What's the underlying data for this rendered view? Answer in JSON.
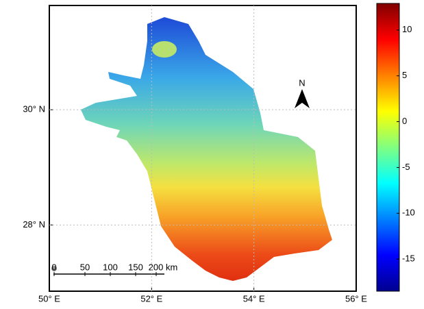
{
  "chart_data": {
    "type": "map",
    "xlim": [
      50,
      56
    ],
    "xticks": [
      {
        "value": 50,
        "label": "50° E"
      },
      {
        "value": 52,
        "label": "52° E"
      },
      {
        "value": 54,
        "label": "54° E"
      },
      {
        "value": 56,
        "label": "56° E"
      }
    ],
    "ylim": [
      26.85,
      31.81
    ],
    "yticks": [
      {
        "value": 28,
        "label": "28° N"
      },
      {
        "value": 30,
        "label": "30° N"
      }
    ],
    "grid": true,
    "colorbar": {
      "colormap": "jet",
      "lim": [
        -18.5,
        12.9
      ],
      "ticks": [
        -15,
        -10,
        -5,
        0,
        5,
        10
      ]
    },
    "north_arrow": "N",
    "scale_bar": [
      "0",
      "50",
      "100",
      "150",
      "200 km"
    ]
  }
}
